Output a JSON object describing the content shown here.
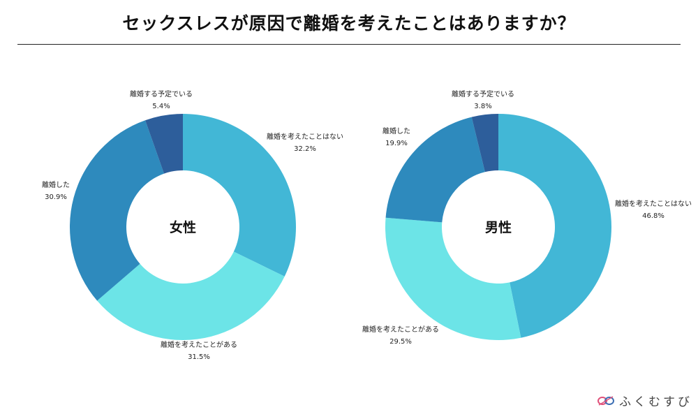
{
  "page": {
    "title": "セックスレスが原因で離婚を考えたことはありますか？"
  },
  "logo": {
    "text": "ふくむすび",
    "icon": "knot-icon"
  },
  "chart_data": [
    {
      "type": "pie",
      "donut": true,
      "center_label": "女性",
      "start_direction": "top",
      "order": "clockwise",
      "slices": [
        {
          "label": "離婚を考えたことはない",
          "value": 32.2,
          "value_text": "32.2%",
          "color": "#42B7D6"
        },
        {
          "label": "離婚を考えたことがある",
          "value": 31.5,
          "value_text": "31.5%",
          "color": "#6CE4E7"
        },
        {
          "label": "離婚した",
          "value": 30.9,
          "value_text": "30.9%",
          "color": "#2E8ABD"
        },
        {
          "label": "離婚する予定でいる",
          "value": 5.4,
          "value_text": "5.4%",
          "color": "#2D5E9B"
        }
      ]
    },
    {
      "type": "pie",
      "donut": true,
      "center_label": "男性",
      "start_direction": "top",
      "order": "clockwise",
      "slices": [
        {
          "label": "離婚を考えたことはない",
          "value": 46.8,
          "value_text": "46.8%",
          "color": "#42B7D6"
        },
        {
          "label": "離婚を考えたことがある",
          "value": 29.5,
          "value_text": "29.5%",
          "color": "#6CE4E7"
        },
        {
          "label": "離婚した",
          "value": 19.9,
          "value_text": "19.9%",
          "color": "#2E8ABD"
        },
        {
          "label": "離婚する予定でいる",
          "value": 3.8,
          "value_text": "3.8%",
          "color": "#2D5E9B"
        }
      ]
    }
  ]
}
